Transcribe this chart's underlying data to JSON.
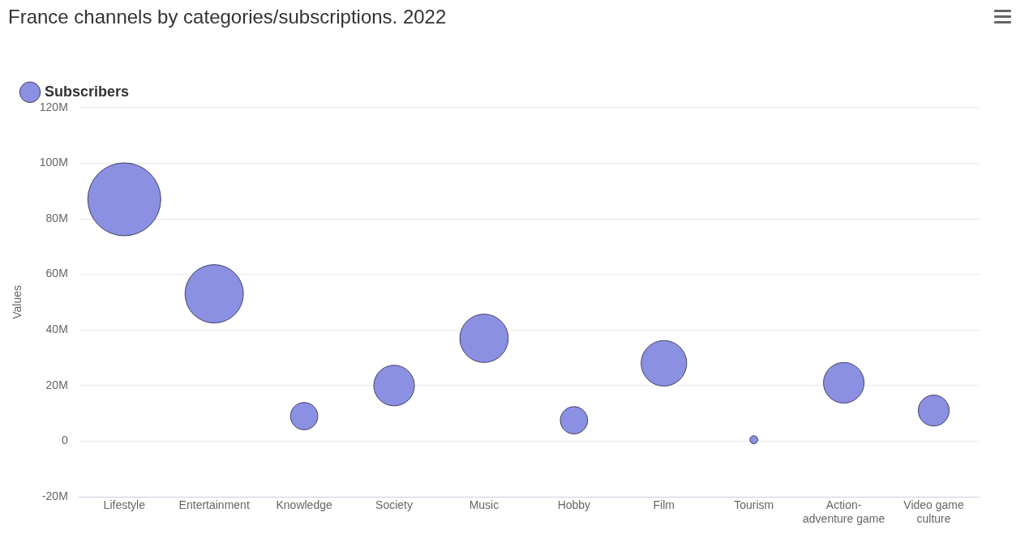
{
  "chart_data": {
    "type": "bubble",
    "title": "France channels by categories/subscriptions. 2022",
    "ylabel": "Values",
    "categories": [
      "Lifestyle",
      "Entertainment",
      "Knowledge",
      "Society",
      "Music",
      "Hobby",
      "Film",
      "Tourism",
      "Action-adventure game",
      "Video game culture"
    ],
    "series": [
      {
        "name": "Subscribers",
        "color": "#8c90e2",
        "values": [
          87,
          53,
          9,
          20,
          37,
          7.5,
          28,
          0.5,
          21,
          11
        ],
        "sizes": [
          1,
          0.64,
          0.14,
          0.31,
          0.44,
          0.14,
          0.39,
          0.012,
          0.31,
          0.18
        ]
      }
    ],
    "ylim": [
      -20,
      120
    ],
    "yticks": [
      {
        "value": -20,
        "label": "-20M"
      },
      0,
      {
        "value": 20,
        "label": "20M"
      },
      {
        "value": 40,
        "label": "40M"
      },
      {
        "value": 60,
        "label": "60M"
      },
      {
        "value": 80,
        "label": "80M"
      },
      {
        "value": 100,
        "label": "100M"
      },
      {
        "value": 120,
        "label": "120M"
      }
    ],
    "grid": "y",
    "legend": "top left"
  }
}
